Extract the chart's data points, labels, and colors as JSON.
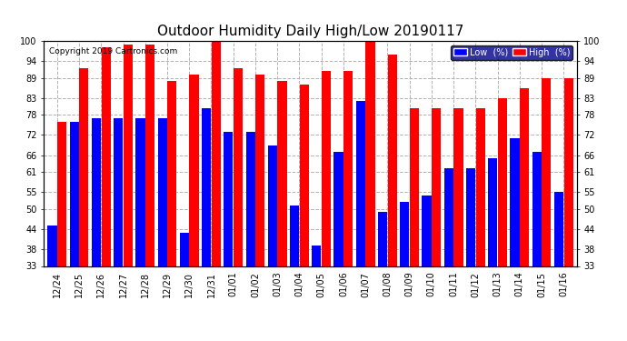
{
  "title": "Outdoor Humidity Daily High/Low 20190117",
  "copyright": "Copyright 2019 Cartronics.com",
  "dates": [
    "12/24",
    "12/25",
    "12/26",
    "12/27",
    "12/28",
    "12/29",
    "12/30",
    "12/31",
    "01/01",
    "01/02",
    "01/03",
    "01/04",
    "01/05",
    "01/06",
    "01/07",
    "01/08",
    "01/09",
    "01/10",
    "01/11",
    "01/12",
    "01/13",
    "01/14",
    "01/15",
    "01/16"
  ],
  "high": [
    76,
    92,
    98,
    99,
    99,
    88,
    90,
    100,
    92,
    90,
    88,
    87,
    91,
    91,
    100,
    96,
    80,
    80,
    80,
    80,
    83,
    86,
    89,
    89
  ],
  "low": [
    45,
    76,
    77,
    77,
    77,
    77,
    43,
    80,
    73,
    73,
    69,
    51,
    39,
    67,
    82,
    49,
    52,
    54,
    62,
    62,
    65,
    71,
    67,
    55
  ],
  "ylim_min": 33,
  "ylim_max": 100,
  "yticks": [
    33,
    38,
    44,
    50,
    55,
    61,
    66,
    72,
    78,
    83,
    89,
    94,
    100
  ],
  "high_color": "#FF0000",
  "low_color": "#0000FF",
  "bg_color": "#FFFFFF",
  "grid_color": "#AAAAAA",
  "title_fontsize": 11,
  "legend_low_label": "Low  (%)",
  "legend_high_label": "High  (%)"
}
